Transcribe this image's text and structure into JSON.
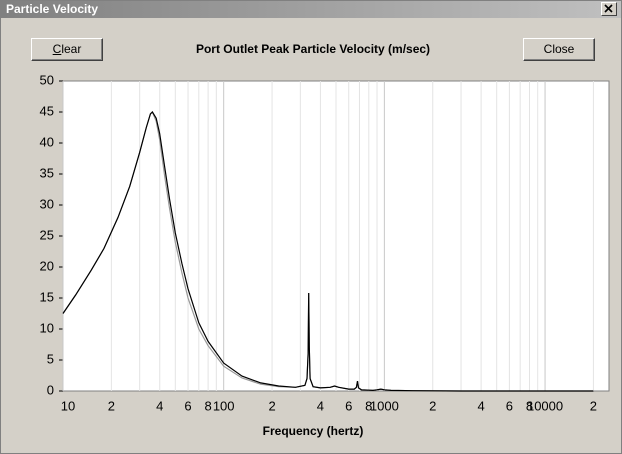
{
  "window": {
    "title": "Particle Velocity",
    "buttons": [
      "Clear",
      "Close"
    ]
  },
  "chart_data": {
    "type": "line",
    "title": "Port Outlet Peak Particle Velocity (m/sec)",
    "x_label": "Frequency (hertz)",
    "x_log": true,
    "xlim": [
      10,
      25000
    ],
    "ylim": [
      0,
      50
    ],
    "yticks": [
      0,
      5,
      10,
      15,
      20,
      25,
      30,
      35,
      40,
      45,
      50
    ],
    "xticks": [
      10,
      {
        "value": 20,
        "label": "2"
      },
      {
        "value": 40,
        "label": "4"
      },
      {
        "value": 60,
        "label": "6"
      },
      {
        "value": 80,
        "label": "8"
      },
      100,
      {
        "value": 200,
        "label": "2"
      },
      {
        "value": 400,
        "label": "4"
      },
      {
        "value": 600,
        "label": "6"
      },
      {
        "value": 800,
        "label": "8"
      },
      1000,
      {
        "value": 2000,
        "label": "2"
      },
      {
        "value": 4000,
        "label": "4"
      },
      {
        "value": 6000,
        "label": "6"
      },
      {
        "value": 8000,
        "label": "8"
      },
      10000,
      {
        "value": 20000,
        "label": "2"
      }
    ],
    "x_minor_grid": [
      30,
      50,
      70,
      90,
      300,
      500,
      700,
      900,
      3000,
      5000,
      7000,
      9000
    ],
    "grid": "x",
    "x": [
      10,
      12,
      15,
      18,
      22,
      26,
      30,
      33,
      35,
      36,
      38,
      40,
      43,
      46,
      50,
      55,
      60,
      70,
      80,
      100,
      130,
      170,
      220,
      280,
      320,
      330,
      335,
      338,
      341,
      345,
      360,
      400,
      460,
      490,
      520,
      600,
      650,
      670,
      680,
      690,
      720,
      850,
      900,
      950,
      1000,
      1100,
      1500,
      3000,
      10000,
      20000
    ],
    "series": [
      {
        "color": "#999999",
        "values": [
          12.5,
          15.5,
          19.5,
          23,
          28,
          33,
          38.5,
          42.5,
          44.7,
          45,
          43.5,
          40.5,
          34.5,
          29.5,
          24,
          19,
          15,
          10,
          7.3,
          4,
          2.1,
          1.1,
          0.7,
          0.6,
          0.9,
          2,
          6,
          15.8,
          7,
          2,
          0.7,
          0.5,
          0.6,
          0.8,
          0.6,
          0.3,
          0.3,
          0.6,
          1.6,
          0.5,
          0.2,
          0.1,
          0.2,
          0.3,
          0.2,
          0.1,
          0.05,
          0,
          0,
          0
        ]
      },
      {
        "color": "#000000",
        "values": [
          12.5,
          15.5,
          19.5,
          23,
          28,
          33,
          38.5,
          42.5,
          44.7,
          45,
          44,
          41.5,
          36,
          31,
          25.5,
          20.5,
          16.5,
          11,
          8,
          4.5,
          2.4,
          1.3,
          0.8,
          0.6,
          0.9,
          2,
          6,
          15.8,
          7,
          2,
          0.7,
          0.5,
          0.6,
          0.8,
          0.6,
          0.3,
          0.3,
          0.6,
          1.6,
          0.5,
          0.2,
          0.1,
          0.2,
          0.3,
          0.2,
          0.1,
          0.05,
          0,
          0,
          0
        ]
      }
    ]
  }
}
